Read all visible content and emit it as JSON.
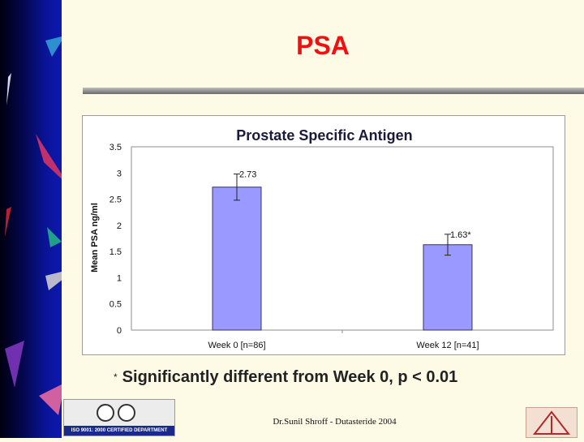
{
  "slide": {
    "title": "PSA",
    "footnote_marker": "*",
    "footnote": "Significantly different from Week 0, p < 0.01",
    "credit": "Dr.Sunil Shroff - Dutasteride 2004",
    "iso_text": "ISO 9001: 2000 CERTIFIED DEPARTMENT"
  },
  "colors": {
    "title": "#ee1111",
    "bar_fill": "#9999ff",
    "bar_stroke": "#333366",
    "chart_title": "#1a1a3a"
  },
  "chart_data": {
    "type": "bar",
    "title": "Prostate Specific Antigen",
    "xlabel": "",
    "ylabel": "Mean PSA ng/ml",
    "categories": [
      "Week 0 [n=86]",
      "Week 12 [n=41]"
    ],
    "values": [
      2.73,
      1.63
    ],
    "error": [
      0.25,
      0.2
    ],
    "data_labels": [
      "2.73",
      "1.63*"
    ],
    "ylim": [
      0,
      3.5
    ],
    "yticks": [
      0,
      0.5,
      1,
      1.5,
      2,
      2.5,
      3,
      3.5
    ],
    "ytick_labels": [
      "0",
      "0.5",
      "1",
      "1.5",
      "2",
      "2.5",
      "3",
      "3.5"
    ],
    "grid": false,
    "legend": "none"
  }
}
